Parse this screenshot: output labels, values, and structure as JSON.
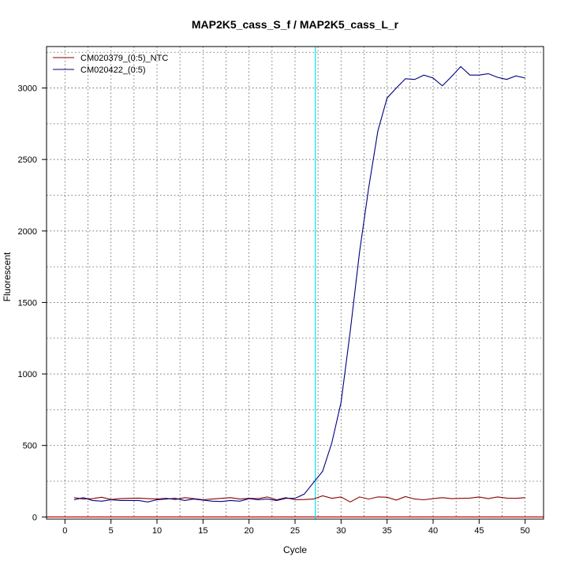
{
  "chart_data": {
    "type": "line",
    "title": "MAP2K5_cass_S_f / MAP2K5_cass_L_r",
    "xlabel": "Cycle",
    "ylabel": "Fluorescent",
    "xlim": [
      -2,
      52
    ],
    "ylim": [
      -15,
      3290
    ],
    "xticks": [
      0,
      5,
      10,
      15,
      20,
      25,
      30,
      35,
      40,
      45,
      50
    ],
    "yticks": [
      0,
      500,
      1000,
      1500,
      2000,
      2500,
      3000
    ],
    "grid": true,
    "legend": "top-left",
    "threshold_cycle": 27.2,
    "threshold_color": "#00e5ee",
    "baseline_color": "#cc0000",
    "series": [
      {
        "name": "CM020379_(0:5)_NTC",
        "color": "#8b0000",
        "x": [
          1,
          2,
          3,
          4,
          5,
          6,
          7,
          8,
          9,
          10,
          11,
          12,
          13,
          14,
          15,
          16,
          17,
          18,
          19,
          20,
          21,
          22,
          23,
          24,
          25,
          26,
          27,
          28,
          29,
          30,
          31,
          32,
          33,
          34,
          35,
          36,
          37,
          38,
          39,
          40,
          41,
          42,
          43,
          44,
          45,
          46,
          47,
          48,
          49,
          50
        ],
        "y": [
          135,
          125,
          128,
          138,
          122,
          128,
          130,
          132,
          128,
          125,
          130,
          122,
          135,
          128,
          120,
          125,
          130,
          135,
          125,
          130,
          128,
          140,
          120,
          135,
          120,
          122,
          125,
          148,
          130,
          140,
          105,
          140,
          125,
          140,
          138,
          118,
          142,
          125,
          120,
          128,
          135,
          128,
          130,
          132,
          140,
          128,
          140,
          132,
          130,
          135
        ]
      },
      {
        "name": "CM020422_(0:5)",
        "color": "#000080",
        "x": [
          1,
          2,
          3,
          4,
          5,
          6,
          7,
          8,
          9,
          10,
          11,
          12,
          13,
          14,
          15,
          16,
          17,
          18,
          19,
          20,
          21,
          22,
          23,
          24,
          25,
          26,
          27,
          28,
          29,
          30,
          31,
          32,
          33,
          34,
          35,
          36,
          37,
          38,
          39,
          40,
          41,
          42,
          43,
          44,
          45,
          46,
          47,
          48,
          49,
          50
        ],
        "y": [
          120,
          135,
          115,
          110,
          120,
          115,
          115,
          115,
          105,
          120,
          125,
          130,
          115,
          125,
          118,
          110,
          108,
          115,
          110,
          128,
          120,
          125,
          115,
          130,
          130,
          160,
          240,
          320,
          520,
          800,
          1300,
          1850,
          2300,
          2700,
          2930,
          3000,
          3065,
          3060,
          3090,
          3070,
          3015,
          3080,
          3150,
          3090,
          3090,
          3100,
          3075,
          3060,
          3085,
          3070
        ]
      }
    ]
  }
}
